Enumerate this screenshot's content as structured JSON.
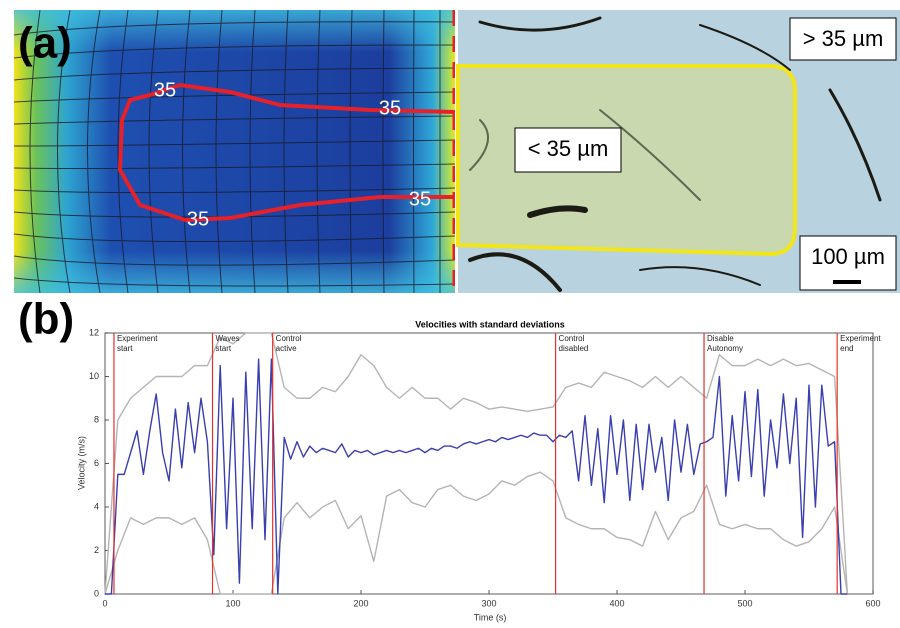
{
  "panel_a": {
    "label": "(a)",
    "contour_labels": [
      "35",
      "35",
      "35",
      "35"
    ],
    "outer_label": "> 35 µm",
    "inner_label": "< 35 µm",
    "scale_label": "100 µm"
  },
  "panel_b": {
    "label": "(b)"
  },
  "chart_data": {
    "type": "line",
    "title": "Velocities with standard deviations",
    "xlabel": "Time (s)",
    "ylabel": "Velocity (m/s)",
    "xlim": [
      0,
      600
    ],
    "xticks": [
      0,
      100,
      200,
      300,
      400,
      500,
      600
    ],
    "ylim": [
      0,
      12
    ],
    "yticks": [
      0,
      2,
      4,
      6,
      8,
      10,
      12
    ],
    "grid": false,
    "event_color": "#e8302a",
    "annotations": [
      {
        "x": 7,
        "lines": [
          "Experiment",
          "start"
        ]
      },
      {
        "x": 84,
        "lines": [
          "Waves",
          "start"
        ]
      },
      {
        "x": 131,
        "lines": [
          "Control",
          "active"
        ]
      },
      {
        "x": 352,
        "lines": [
          "Control",
          "disabled"
        ]
      },
      {
        "x": 468,
        "lines": [
          "Disable",
          "Autonomy"
        ]
      },
      {
        "x": 572,
        "lines": [
          "Experiment",
          "end"
        ]
      }
    ],
    "series": [
      {
        "color": "#b4b4b4",
        "x": [
          0,
          10,
          20,
          30,
          40,
          50,
          60,
          70,
          80,
          90,
          100,
          110,
          120,
          130,
          140,
          150,
          160,
          170,
          180,
          190,
          200,
          210,
          220,
          230,
          240,
          250,
          260,
          270,
          280,
          290,
          300,
          310,
          320,
          330,
          340,
          350,
          360,
          370,
          380,
          390,
          400,
          410,
          420,
          430,
          440,
          450,
          460,
          470,
          480,
          490,
          500,
          510,
          520,
          530,
          540,
          550,
          560,
          570,
          580
        ],
        "values": [
          0,
          8,
          9,
          9.5,
          10,
          10,
          10,
          10.5,
          10.5,
          11.8,
          11.5,
          12,
          12,
          12,
          9.5,
          9,
          9,
          9.5,
          9.3,
          10,
          11,
          10.5,
          9.5,
          9,
          9.5,
          9,
          9,
          8.5,
          9,
          8.8,
          8.5,
          8.6,
          8.5,
          8.4,
          8.5,
          8.6,
          9.5,
          9.7,
          9.5,
          10.2,
          10,
          9.8,
          9.5,
          10,
          9.5,
          10,
          9.5,
          9,
          11,
          10.5,
          10.5,
          10.8,
          10.5,
          10.8,
          10.5,
          10.6,
          10.3,
          10,
          0
        ]
      },
      {
        "color": "#b4b4b4",
        "x": [
          0,
          10,
          20,
          30,
          40,
          50,
          60,
          70,
          80,
          90,
          100,
          110,
          120,
          130,
          140,
          150,
          160,
          170,
          180,
          190,
          200,
          210,
          220,
          230,
          240,
          250,
          260,
          270,
          280,
          290,
          300,
          310,
          320,
          330,
          340,
          350,
          360,
          370,
          380,
          390,
          400,
          410,
          420,
          430,
          440,
          450,
          460,
          470,
          480,
          490,
          500,
          510,
          520,
          530,
          540,
          550,
          560,
          570,
          580
        ],
        "values": [
          0,
          2,
          3.5,
          3.2,
          3.5,
          3.5,
          3.2,
          3.5,
          2.5,
          0,
          0,
          0,
          0,
          0,
          3.5,
          4.2,
          3.5,
          4,
          4.3,
          3,
          3.6,
          1.5,
          4.5,
          4.8,
          4.2,
          4,
          4.8,
          5,
          4.5,
          4.3,
          4.6,
          5.2,
          5,
          5.4,
          5.6,
          5.2,
          3.5,
          3.2,
          3,
          3,
          2.6,
          2.5,
          2.2,
          3.8,
          2.5,
          3.5,
          3.8,
          5,
          3.2,
          3,
          3.2,
          3,
          3,
          2.5,
          2.2,
          2.4,
          3,
          4,
          0
        ]
      },
      {
        "color": "#3a3fb0",
        "x": [
          0,
          5,
          10,
          15,
          20,
          25,
          30,
          35,
          40,
          45,
          50,
          55,
          60,
          65,
          70,
          75,
          80,
          85,
          90,
          95,
          100,
          105,
          110,
          115,
          120,
          125,
          130,
          135,
          140,
          145,
          150,
          155,
          160,
          165,
          170,
          175,
          180,
          185,
          190,
          195,
          200,
          205,
          210,
          215,
          220,
          225,
          230,
          235,
          240,
          245,
          250,
          255,
          260,
          265,
          270,
          275,
          280,
          285,
          290,
          295,
          300,
          305,
          310,
          315,
          320,
          325,
          330,
          335,
          340,
          345,
          350,
          355,
          360,
          365,
          370,
          375,
          380,
          385,
          390,
          395,
          400,
          405,
          410,
          415,
          420,
          425,
          430,
          435,
          440,
          445,
          450,
          455,
          460,
          465,
          470,
          475,
          480,
          485,
          490,
          495,
          500,
          505,
          510,
          515,
          520,
          525,
          530,
          535,
          540,
          545,
          550,
          555,
          560,
          565,
          570,
          575,
          580
        ],
        "values": [
          0,
          0,
          5.5,
          5.5,
          6.5,
          7.5,
          5.5,
          7.5,
          9.2,
          6.5,
          5.2,
          8.5,
          5.8,
          8.8,
          6.5,
          9.0,
          7.0,
          1.8,
          10.5,
          3.0,
          9.0,
          0.5,
          10.2,
          3.0,
          10.8,
          2.5,
          10.8,
          0,
          7.2,
          6.2,
          7.0,
          6.3,
          6.8,
          6.5,
          6.7,
          6.6,
          6.5,
          6.9,
          6.3,
          6.6,
          6.5,
          6.6,
          6.4,
          6.5,
          6.6,
          6.5,
          6.6,
          6.5,
          6.6,
          6.7,
          6.5,
          6.7,
          6.6,
          6.8,
          6.8,
          6.7,
          6.9,
          7.0,
          6.9,
          7.0,
          7.1,
          7.0,
          7.2,
          7.1,
          7.2,
          7.3,
          7.2,
          7.4,
          7.3,
          7.3,
          7.0,
          7.3,
          7.2,
          7.5,
          5.2,
          8.2,
          5.0,
          7.6,
          4.2,
          8.2,
          5.5,
          8.0,
          4.3,
          7.8,
          4.8,
          7.8,
          5.6,
          7.2,
          4.3,
          8.0,
          5.6,
          7.8,
          5.5,
          6.9,
          7.0,
          7.2,
          10.0,
          4.5,
          8.2,
          5.2,
          9.3,
          5.4,
          9.4,
          4.5,
          8.0,
          5.8,
          9.2,
          6.0,
          9.0,
          2.6,
          9.6,
          4.0,
          9.6,
          6.8,
          7.0,
          0,
          0
        ]
      }
    ]
  }
}
